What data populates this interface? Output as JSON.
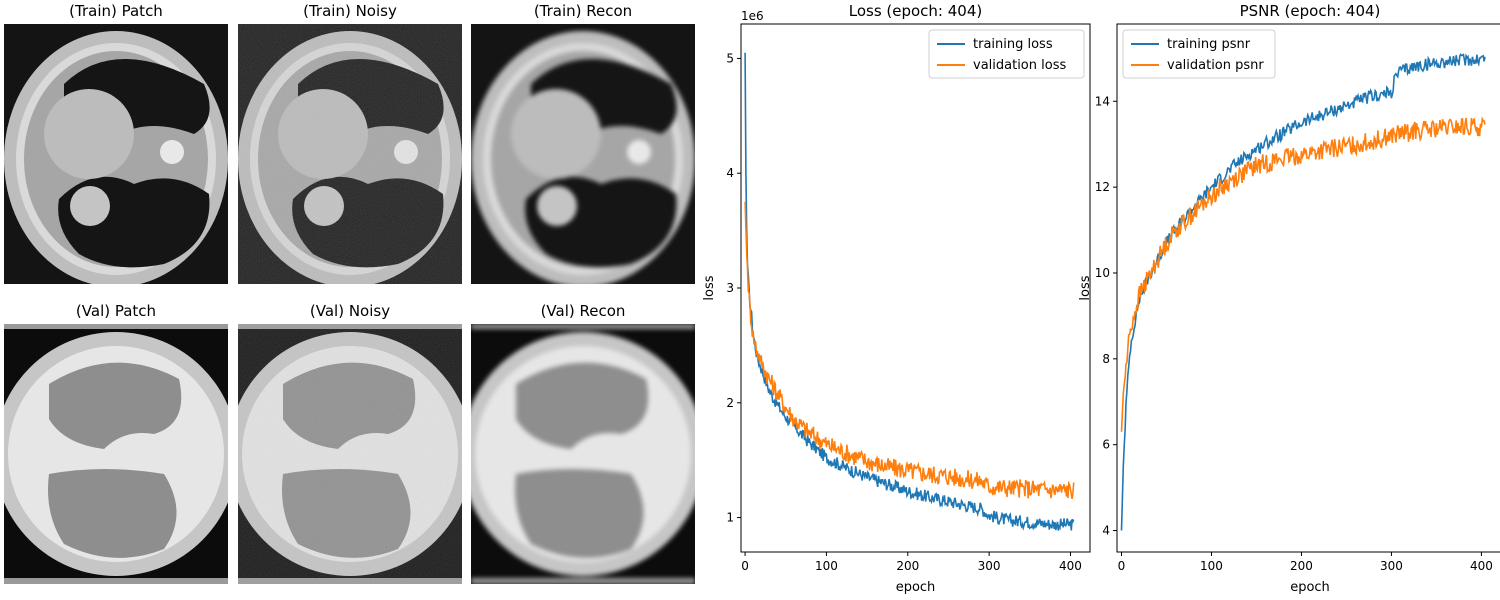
{
  "image_panels": [
    {
      "title": "(Train) Patch",
      "variant": "train-patch"
    },
    {
      "title": "(Train) Noisy",
      "variant": "train-noisy"
    },
    {
      "title": "(Train) Recon",
      "variant": "train-recon"
    },
    {
      "title": "(Val) Patch",
      "variant": "val-patch"
    },
    {
      "title": "(Val) Noisy",
      "variant": "val-noisy"
    },
    {
      "title": "(Val) Recon",
      "variant": "val-recon"
    }
  ],
  "chart_data": [
    {
      "type": "line",
      "title": "Loss (epoch: 404)",
      "xlabel": "epoch",
      "ylabel": "loss",
      "offset_label": "1e6",
      "xlim": [
        -5,
        424
      ],
      "ylim": [
        0.7,
        5.3
      ],
      "x_ticks": [
        0,
        100,
        200,
        300,
        400
      ],
      "y_ticks": [
        1,
        2,
        3,
        4,
        5
      ],
      "legend_position": "upper-right",
      "series": [
        {
          "name": "training loss",
          "color": "#1f77b4",
          "x": [
            0,
            1,
            2,
            3,
            5,
            8,
            10,
            15,
            20,
            30,
            40,
            50,
            60,
            75,
            100,
            125,
            150,
            175,
            200,
            225,
            250,
            275,
            290,
            300,
            320,
            350,
            380,
            404
          ],
          "y": [
            5.05,
            4.0,
            3.5,
            3.2,
            2.95,
            2.75,
            2.6,
            2.4,
            2.3,
            2.1,
            1.98,
            1.88,
            1.8,
            1.68,
            1.52,
            1.43,
            1.35,
            1.29,
            1.23,
            1.18,
            1.14,
            1.1,
            1.08,
            1.02,
            0.98,
            0.96,
            0.94,
            0.94
          ]
        },
        {
          "name": "validation loss",
          "color": "#ff7f0e",
          "x": [
            0,
            2,
            5,
            8,
            10,
            15,
            20,
            30,
            40,
            50,
            60,
            75,
            100,
            125,
            150,
            175,
            200,
            225,
            250,
            275,
            290,
            300,
            320,
            350,
            380,
            404
          ],
          "y": [
            3.75,
            3.3,
            2.9,
            2.7,
            2.58,
            2.45,
            2.35,
            2.2,
            2.08,
            1.96,
            1.86,
            1.76,
            1.64,
            1.56,
            1.49,
            1.44,
            1.41,
            1.38,
            1.36,
            1.33,
            1.32,
            1.27,
            1.26,
            1.25,
            1.24,
            1.24
          ]
        }
      ]
    },
    {
      "type": "line",
      "title": "PSNR (epoch: 404)",
      "xlabel": "epoch",
      "ylabel": "loss",
      "xlim": [
        -5,
        424
      ],
      "ylim": [
        3.5,
        15.8
      ],
      "x_ticks": [
        0,
        100,
        200,
        300,
        400
      ],
      "y_ticks": [
        4,
        6,
        8,
        10,
        12,
        14
      ],
      "legend_position": "upper-left",
      "series": [
        {
          "name": "training psnr",
          "color": "#1f77b4",
          "x": [
            0,
            2,
            5,
            8,
            10,
            15,
            20,
            30,
            40,
            50,
            60,
            75,
            100,
            125,
            150,
            175,
            200,
            225,
            250,
            275,
            300,
            305,
            310,
            325,
            350,
            375,
            404
          ],
          "y": [
            4.0,
            5.5,
            6.9,
            7.8,
            8.3,
            8.9,
            9.4,
            9.9,
            10.3,
            10.7,
            11.0,
            11.4,
            12.0,
            12.5,
            12.9,
            13.2,
            13.5,
            13.7,
            13.9,
            14.1,
            14.2,
            14.6,
            14.7,
            14.8,
            14.9,
            14.95,
            15.0
          ]
        },
        {
          "name": "validation psnr",
          "color": "#ff7f0e",
          "x": [
            0,
            2,
            5,
            8,
            10,
            15,
            20,
            30,
            40,
            50,
            60,
            75,
            100,
            125,
            150,
            175,
            200,
            225,
            250,
            275,
            300,
            325,
            350,
            375,
            404
          ],
          "y": [
            6.3,
            7.2,
            7.8,
            8.4,
            8.7,
            9.1,
            9.5,
            9.9,
            10.3,
            10.7,
            11.0,
            11.3,
            11.8,
            12.2,
            12.5,
            12.65,
            12.75,
            12.85,
            12.95,
            13.05,
            13.2,
            13.3,
            13.35,
            13.4,
            13.4
          ]
        }
      ]
    }
  ]
}
